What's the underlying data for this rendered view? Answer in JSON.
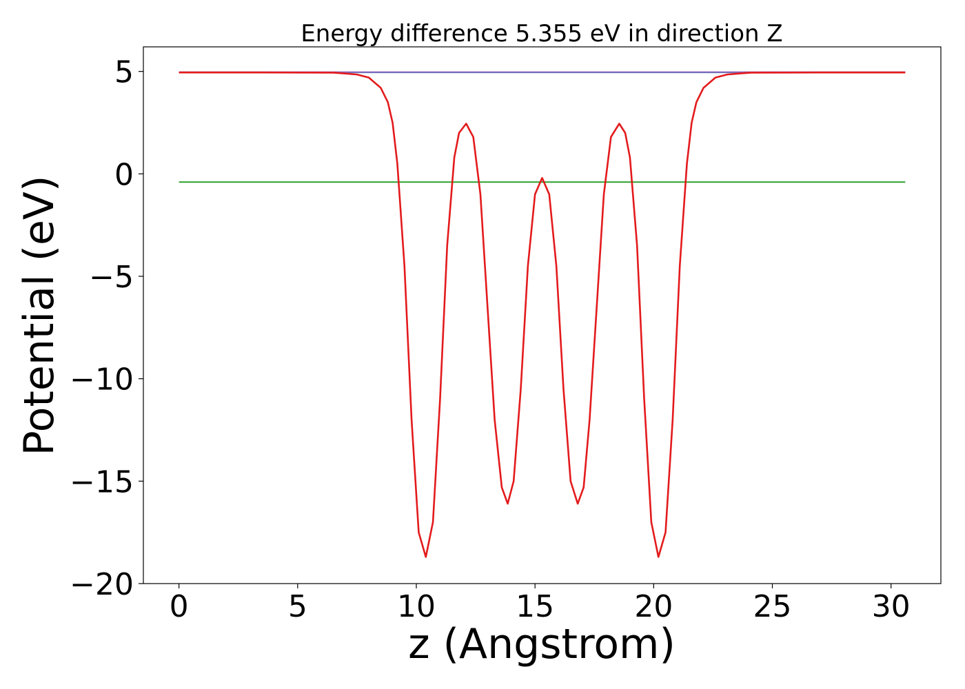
{
  "chart_data": {
    "type": "line",
    "title": "Energy difference 5.355 eV in direction Z",
    "xlabel": "z (Angstrom)",
    "ylabel": "Potential (eV)",
    "xlim": [
      -1.5,
      32.1
    ],
    "ylim": [
      -20,
      6.2
    ],
    "xticks": [
      0,
      5,
      10,
      15,
      20,
      25,
      30
    ],
    "yticks": [
      5,
      0,
      -5,
      -10,
      -15,
      -20
    ],
    "xtick_labels": [
      "0",
      "5",
      "10",
      "15",
      "20",
      "25",
      "30"
    ],
    "ytick_labels": [
      "5",
      "0",
      "−5",
      "−10",
      "−15",
      "−20"
    ],
    "grid": false,
    "legend": "none",
    "series": [
      {
        "color": "#1f77b4",
        "x": [
          0,
          30.6
        ],
        "y": [
          4.95,
          4.95
        ]
      },
      {
        "color": "#2ca02c",
        "x": [
          0,
          30.6
        ],
        "y": [
          -0.4,
          -0.4
        ]
      },
      {
        "color": "#9467bd",
        "x": [
          0,
          30.6
        ],
        "y": [
          4.97,
          4.97
        ]
      },
      {
        "color": "#e31a1c",
        "x": [
          0,
          3.0,
          6.5,
          7.0,
          7.5,
          8.0,
          8.5,
          8.8,
          9.0,
          9.2,
          9.5,
          9.8,
          10.1,
          10.4,
          10.7,
          11.0,
          11.3,
          11.6,
          11.8,
          12.1,
          12.4,
          12.7,
          13.0,
          13.3,
          13.6,
          13.85,
          14.1,
          14.4,
          14.7,
          15.0,
          15.3,
          15.6,
          15.9,
          16.2,
          16.5,
          16.8,
          17.05,
          17.3,
          17.6,
          17.9,
          18.2,
          18.55,
          18.8,
          19.0,
          19.3,
          19.6,
          19.9,
          20.2,
          20.5,
          20.8,
          21.1,
          21.4,
          21.6,
          21.8,
          22.1,
          22.6,
          23.1,
          23.6,
          24.1,
          27.0,
          30.6
        ],
        "y": [
          4.95,
          4.95,
          4.94,
          4.9,
          4.85,
          4.7,
          4.2,
          3.5,
          2.5,
          0.5,
          -4.5,
          -12.0,
          -17.5,
          -18.7,
          -17.0,
          -11.0,
          -3.5,
          0.8,
          2.0,
          2.45,
          1.8,
          -1.0,
          -6.5,
          -12.0,
          -15.3,
          -16.1,
          -15.0,
          -10.5,
          -4.5,
          -1.0,
          -0.2,
          -1.0,
          -4.5,
          -10.5,
          -15.0,
          -16.1,
          -15.3,
          -12.0,
          -6.5,
          -1.0,
          1.8,
          2.45,
          2.0,
          0.8,
          -3.5,
          -11.0,
          -17.0,
          -18.7,
          -17.5,
          -12.0,
          -4.5,
          0.5,
          2.5,
          3.5,
          4.2,
          4.7,
          4.85,
          4.9,
          4.94,
          4.95,
          4.95
        ]
      }
    ]
  }
}
